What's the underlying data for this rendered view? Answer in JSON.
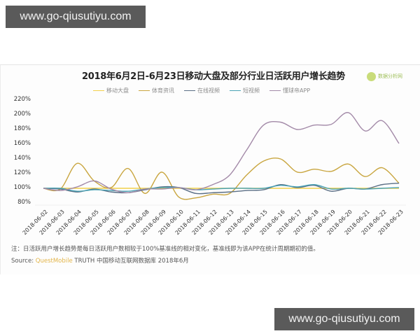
{
  "watermarks": {
    "top": "www.go-qiusutiyu.com",
    "bottom": "www.go-qiusutiyu.com"
  },
  "logo": {
    "text": "数据分析网"
  },
  "chart_data": {
    "type": "line",
    "title": "2018年6月2日-6月23日移动大盘及部分行业日活跃用户增长趋势",
    "xlabel": "",
    "ylabel": "",
    "ylim": [
      80,
      220
    ],
    "yticks": [
      "220%",
      "200%",
      "180%",
      "160%",
      "140%",
      "120%",
      "100%",
      "80%"
    ],
    "grid": false,
    "legend_position": "top",
    "categories": [
      "2018-06-02",
      "2018-06-03",
      "2018-06-04",
      "2018-06-05",
      "2018-06-06",
      "2018-06-07",
      "2018-06-08",
      "2018-06-09",
      "2018-06-10",
      "2018-06-11",
      "2018-06-12",
      "2018-06-13",
      "2018-06-14",
      "2018-06-15",
      "2018-06-16",
      "2018-06-17",
      "2018-06-18",
      "2018-06-19",
      "2018-06-20",
      "2018-06-21",
      "2018-06-22",
      "2018-06-23"
    ],
    "series": [
      {
        "name": "移动大盘",
        "color": "#f2d04a",
        "values": [
          100,
          100,
          100,
          100,
          100,
          100,
          100,
          100,
          100,
          100,
          100,
          100,
          100,
          100,
          100,
          100,
          100,
          100,
          100,
          100,
          100,
          100
        ]
      },
      {
        "name": "体育资讯",
        "color": "#c9a640",
        "values": [
          100,
          99,
          134,
          110,
          101,
          127,
          93,
          122,
          88,
          87,
          92,
          93,
          118,
          137,
          140,
          122,
          126,
          123,
          133,
          116,
          128,
          107
        ]
      },
      {
        "name": "在线视频",
        "color": "#5b6f86",
        "values": [
          100,
          99,
          95,
          99,
          95,
          94,
          98,
          102,
          101,
          93,
          94,
          95,
          97,
          98,
          105,
          101,
          104,
          96,
          100,
          99,
          105,
          107
        ]
      },
      {
        "name": "短视频",
        "color": "#4aa3b5",
        "values": [
          100,
          100,
          96,
          98,
          97,
          96,
          99,
          101,
          101,
          98,
          99,
          100,
          100,
          100,
          104,
          102,
          105,
          99,
          100,
          99,
          100,
          101
        ]
      },
      {
        "name": "懂球帝APP",
        "color": "#a38aa8",
        "values": [
          100,
          97,
          102,
          110,
          99,
          94,
          99,
          99,
          101,
          98,
          105,
          118,
          152,
          186,
          190,
          180,
          186,
          187,
          203,
          178,
          192,
          161
        ]
      }
    ]
  },
  "footer": {
    "note": "注：日活跃用户增长趋势是每日活跃用户数相较于100%基准线的相对变化，基准线即为该APP在统计周期期初的值。",
    "source_label": "Source:",
    "source_brand": "QuestMobile",
    "source_rest": " TRUTH 中国移动互联网数据库 2018年6月"
  }
}
